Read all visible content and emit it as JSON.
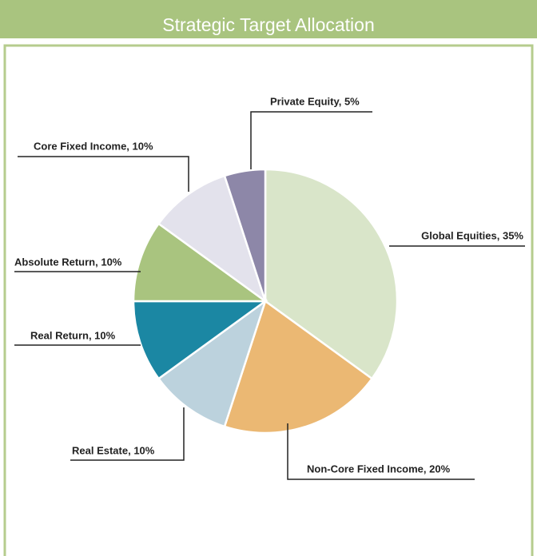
{
  "chart_data": {
    "type": "pie",
    "title": "Strategic Target Allocation",
    "values": [
      35,
      20,
      10,
      10,
      10,
      10,
      5
    ],
    "value_labels": [
      "Global Equities, 35%",
      "Non-Core Fixed Income, 20%",
      "Real Estate, 10%",
      "Real Return, 10%",
      "Absolute Return, 10%",
      "Core Fixed Income, 10%",
      "Private Equity, 5%"
    ],
    "colors": [
      "#d9e5c9",
      "#ebb873",
      "#bcd2dd",
      "#1b87a3",
      "#a9c47f",
      "#e3e2ec",
      "#8d87a8"
    ]
  }
}
